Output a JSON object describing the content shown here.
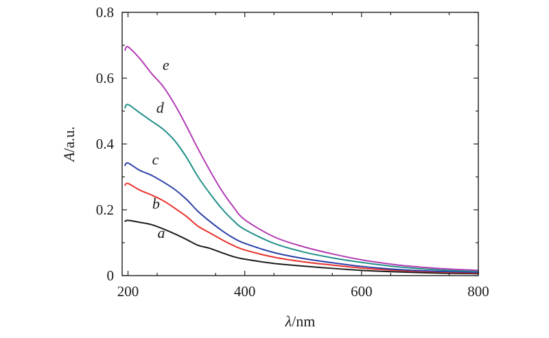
{
  "chart_data": {
    "type": "line",
    "title": "",
    "xlabel_italic": "λ",
    "xlabel_unit": "/nm",
    "ylabel_italic": "A",
    "ylabel_unit": "/a.u.",
    "xlim": [
      190,
      800
    ],
    "ylim": [
      0,
      0.8
    ],
    "x_ticks": [
      200,
      400,
      600,
      800
    ],
    "x_tick_labels": [
      "200",
      "400",
      "600",
      "800"
    ],
    "y_ticks": [
      0,
      0.2,
      0.4,
      0.6,
      0.8
    ],
    "y_tick_labels": [
      "0",
      "0.2",
      "0.4",
      "0.6",
      "0.8"
    ],
    "grid": false,
    "series": [
      {
        "name": "a",
        "color": "#1a1a1a",
        "label_at": [
          257,
          0.115
        ],
        "x": [
          195,
          200,
          220,
          240,
          260,
          280,
          300,
          320,
          340,
          360,
          380,
          400,
          450,
          500,
          550,
          600,
          650,
          700,
          750,
          800
        ],
        "y": [
          0.165,
          0.168,
          0.162,
          0.155,
          0.142,
          0.127,
          0.11,
          0.092,
          0.083,
          0.07,
          0.058,
          0.05,
          0.037,
          0.029,
          0.022,
          0.016,
          0.012,
          0.009,
          0.007,
          0.006
        ]
      },
      {
        "name": "b",
        "color": "#e8302a",
        "label_at": [
          248,
          0.203
        ],
        "x": [
          195,
          200,
          220,
          240,
          260,
          280,
          300,
          320,
          340,
          360,
          380,
          400,
          450,
          500,
          550,
          600,
          650,
          700,
          750,
          800
        ],
        "y": [
          0.275,
          0.28,
          0.26,
          0.245,
          0.228,
          0.205,
          0.18,
          0.15,
          0.13,
          0.11,
          0.092,
          0.078,
          0.056,
          0.042,
          0.032,
          0.023,
          0.017,
          0.013,
          0.01,
          0.008
        ]
      },
      {
        "name": "c",
        "color": "#2a3fa8",
        "label_at": [
          247,
          0.337
        ],
        "x": [
          195,
          200,
          220,
          240,
          260,
          280,
          300,
          320,
          340,
          360,
          380,
          400,
          450,
          500,
          550,
          600,
          650,
          700,
          750,
          800
        ],
        "y": [
          0.335,
          0.342,
          0.32,
          0.305,
          0.285,
          0.262,
          0.232,
          0.195,
          0.165,
          0.138,
          0.115,
          0.098,
          0.07,
          0.052,
          0.039,
          0.028,
          0.02,
          0.015,
          0.012,
          0.01
        ]
      },
      {
        "name": "d",
        "color": "#1f8f87",
        "label_at": [
          255,
          0.495
        ],
        "x": [
          195,
          200,
          220,
          240,
          260,
          280,
          300,
          320,
          340,
          360,
          380,
          400,
          450,
          500,
          550,
          600,
          650,
          700,
          750,
          800
        ],
        "y": [
          0.51,
          0.52,
          0.495,
          0.47,
          0.445,
          0.41,
          0.36,
          0.3,
          0.25,
          0.205,
          0.168,
          0.14,
          0.098,
          0.072,
          0.054,
          0.04,
          0.029,
          0.021,
          0.016,
          0.013
        ]
      },
      {
        "name": "e",
        "color": "#b33bb3",
        "label_at": [
          265,
          0.625
        ],
        "x": [
          195,
          200,
          220,
          240,
          260,
          280,
          300,
          320,
          340,
          360,
          380,
          400,
          450,
          500,
          550,
          600,
          650,
          700,
          750,
          800
        ],
        "y": [
          0.685,
          0.695,
          0.66,
          0.615,
          0.575,
          0.52,
          0.455,
          0.385,
          0.32,
          0.26,
          0.21,
          0.17,
          0.118,
          0.088,
          0.066,
          0.048,
          0.035,
          0.026,
          0.02,
          0.016
        ]
      }
    ]
  }
}
